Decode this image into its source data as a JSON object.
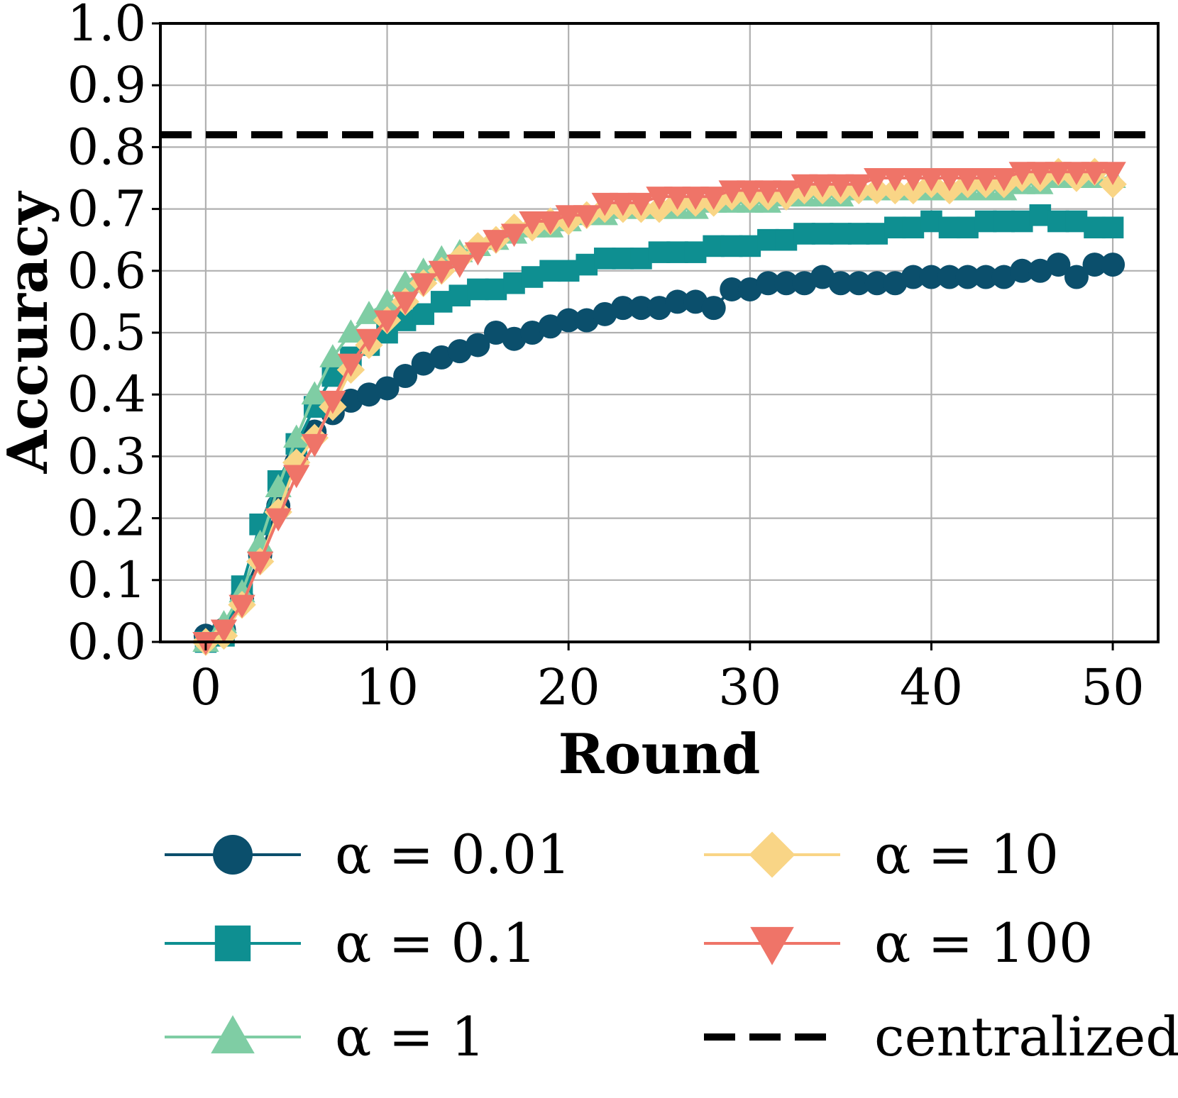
{
  "chart_data": {
    "type": "line",
    "title": "",
    "xlabel": "Round",
    "ylabel": "Accuracy",
    "xlim": [
      -2.5,
      52.5
    ],
    "ylim": [
      0.0,
      1.0
    ],
    "xticks": [
      "0",
      "10",
      "20",
      "30",
      "40",
      "50"
    ],
    "yticks": [
      "0.0",
      "0.1",
      "0.2",
      "0.3",
      "0.4",
      "0.5",
      "0.6",
      "0.7",
      "0.8",
      "0.9",
      "1.0"
    ],
    "grid": true,
    "legend_position": "bottom, below plot (3 rows x 2 columns)",
    "x": [
      0,
      1,
      2,
      3,
      4,
      5,
      6,
      7,
      8,
      9,
      10,
      11,
      12,
      13,
      14,
      15,
      16,
      17,
      18,
      19,
      20,
      21,
      22,
      23,
      24,
      25,
      26,
      27,
      28,
      29,
      30,
      31,
      32,
      33,
      34,
      35,
      36,
      37,
      38,
      39,
      40,
      41,
      42,
      43,
      44,
      45,
      46,
      47,
      48,
      49,
      50
    ],
    "series": [
      {
        "name": "α = 0.01",
        "legend_label": "α = 0.01",
        "color": "#0b4f6c",
        "marker": "circle",
        "values": [
          0.01,
          0.02,
          0.07,
          0.14,
          0.22,
          0.29,
          0.34,
          0.37,
          0.39,
          0.4,
          0.41,
          0.43,
          0.45,
          0.46,
          0.47,
          0.48,
          0.5,
          0.49,
          0.5,
          0.51,
          0.52,
          0.52,
          0.53,
          0.54,
          0.54,
          0.54,
          0.55,
          0.55,
          0.54,
          0.57,
          0.57,
          0.58,
          0.58,
          0.58,
          0.59,
          0.58,
          0.58,
          0.58,
          0.58,
          0.59,
          0.59,
          0.59,
          0.59,
          0.59,
          0.59,
          0.6,
          0.6,
          0.61,
          0.59,
          0.61,
          0.61
        ]
      },
      {
        "name": "α = 0.1",
        "legend_label": "α = 0.1",
        "color": "#0e8f91",
        "marker": "square",
        "values": [
          0.0,
          0.01,
          0.09,
          0.19,
          0.26,
          0.32,
          0.38,
          0.43,
          0.46,
          0.48,
          0.5,
          0.52,
          0.53,
          0.55,
          0.56,
          0.57,
          0.57,
          0.58,
          0.59,
          0.6,
          0.6,
          0.61,
          0.62,
          0.62,
          0.62,
          0.63,
          0.63,
          0.63,
          0.64,
          0.64,
          0.64,
          0.65,
          0.65,
          0.66,
          0.66,
          0.66,
          0.66,
          0.66,
          0.67,
          0.67,
          0.68,
          0.67,
          0.67,
          0.68,
          0.68,
          0.68,
          0.69,
          0.68,
          0.68,
          0.67,
          0.67
        ]
      },
      {
        "name": "α = 1",
        "legend_label": "α = 1",
        "color": "#7fcda4",
        "marker": "triangle-up",
        "values": [
          0.0,
          0.03,
          0.08,
          0.16,
          0.25,
          0.33,
          0.4,
          0.46,
          0.5,
          0.53,
          0.55,
          0.58,
          0.6,
          0.62,
          0.63,
          0.64,
          0.65,
          0.66,
          0.67,
          0.67,
          0.68,
          0.69,
          0.69,
          0.7,
          0.7,
          0.7,
          0.7,
          0.7,
          0.71,
          0.71,
          0.71,
          0.71,
          0.72,
          0.72,
          0.72,
          0.72,
          0.73,
          0.73,
          0.73,
          0.73,
          0.73,
          0.73,
          0.73,
          0.73,
          0.73,
          0.74,
          0.74,
          0.75,
          0.75,
          0.75,
          0.75
        ]
      },
      {
        "name": "α = 10",
        "legend_label": "α = 10",
        "color": "#f9d586",
        "marker": "diamond",
        "values": [
          0.0,
          0.01,
          0.06,
          0.13,
          0.21,
          0.29,
          0.33,
          0.38,
          0.44,
          0.48,
          0.52,
          0.55,
          0.58,
          0.6,
          0.62,
          0.64,
          0.65,
          0.67,
          0.67,
          0.68,
          0.68,
          0.69,
          0.7,
          0.7,
          0.7,
          0.7,
          0.71,
          0.71,
          0.71,
          0.72,
          0.72,
          0.72,
          0.72,
          0.73,
          0.73,
          0.73,
          0.73,
          0.73,
          0.73,
          0.73,
          0.74,
          0.73,
          0.74,
          0.74,
          0.74,
          0.75,
          0.75,
          0.76,
          0.75,
          0.76,
          0.74
        ]
      },
      {
        "name": "α = 100",
        "legend_label": "α = 100",
        "color": "#ef7468",
        "marker": "triangle-down",
        "values": [
          0.0,
          0.02,
          0.06,
          0.13,
          0.2,
          0.27,
          0.32,
          0.39,
          0.45,
          0.49,
          0.52,
          0.55,
          0.58,
          0.6,
          0.61,
          0.63,
          0.65,
          0.66,
          0.68,
          0.68,
          0.69,
          0.69,
          0.71,
          0.71,
          0.71,
          0.72,
          0.72,
          0.72,
          0.72,
          0.73,
          0.73,
          0.73,
          0.73,
          0.74,
          0.74,
          0.74,
          0.74,
          0.75,
          0.75,
          0.75,
          0.75,
          0.75,
          0.75,
          0.75,
          0.75,
          0.76,
          0.76,
          0.76,
          0.76,
          0.76,
          0.76
        ]
      }
    ],
    "reference_lines": [
      {
        "name": "centralized",
        "legend_label": "centralized",
        "y": 0.82,
        "color": "#000000",
        "style": "dashed"
      }
    ]
  }
}
